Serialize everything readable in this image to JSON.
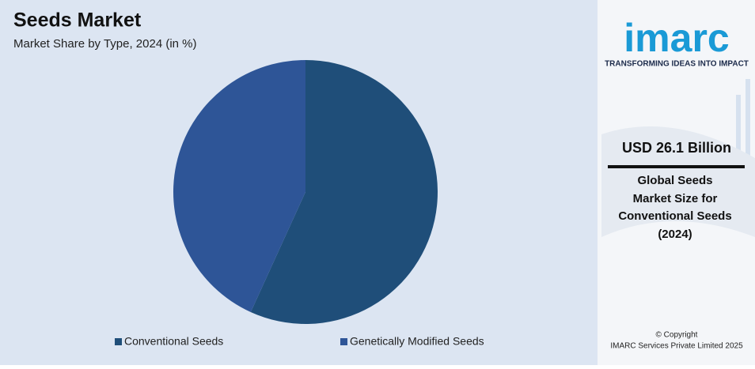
{
  "chart_data": {
    "type": "pie",
    "title": "Seeds Market",
    "subtitle": "Market Share by Type, 2024 (in %)",
    "categories": [
      "Conventional Seeds",
      "Genetically Modified Seeds"
    ],
    "values": [
      56.8,
      43.2
    ],
    "colors": [
      "#1f4e79",
      "#2e5597"
    ],
    "legend": "bottom"
  },
  "sidebar": {
    "logo": "imarc",
    "tagline": "TRANSFORMING IDEAS INTO IMPACT",
    "headline": "USD 26.1 Billion",
    "description": [
      "Global Seeds",
      "Market Size for",
      "Conventional Seeds",
      "(2024)"
    ],
    "copyright": [
      "© Copyright",
      "IMARC Services Private Limited 2025"
    ]
  }
}
